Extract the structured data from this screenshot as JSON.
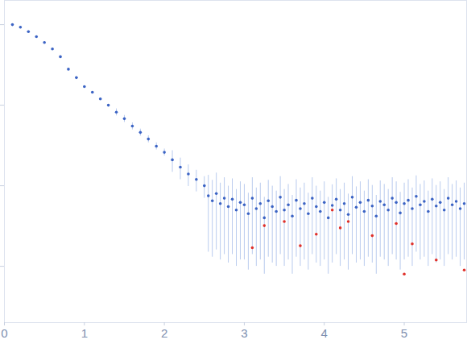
{
  "chart_data": {
    "type": "scatter",
    "log": "y",
    "grid": false,
    "tick_labels": "x",
    "xlim": [
      0,
      5.78
    ],
    "xticks": [
      0,
      1,
      2,
      3,
      4,
      5
    ],
    "ylim": [
      0.0002,
      2
    ],
    "yticks": [
      0.001,
      0.01,
      0.1,
      1
    ],
    "series": [
      {
        "color": "#3b63c4",
        "marker": "circle",
        "x": [
          0.1,
          0.2,
          0.3,
          0.4,
          0.5,
          0.6,
          0.7,
          0.8,
          0.9,
          1.0,
          1.1,
          1.2,
          1.3,
          1.4,
          1.5,
          1.6,
          1.7,
          1.8,
          1.9,
          2.0,
          2.1,
          2.2,
          2.3,
          2.4,
          2.5,
          2.55,
          2.6,
          2.65,
          2.7,
          2.75,
          2.8,
          2.85,
          2.9,
          2.95,
          3.0,
          3.05,
          3.1,
          3.15,
          3.2,
          3.25,
          3.3,
          3.35,
          3.4,
          3.45,
          3.5,
          3.55,
          3.6,
          3.65,
          3.7,
          3.75,
          3.8,
          3.85,
          3.9,
          3.95,
          4.0,
          4.05,
          4.1,
          4.15,
          4.2,
          4.25,
          4.3,
          4.35,
          4.4,
          4.45,
          4.5,
          4.55,
          4.6,
          4.65,
          4.7,
          4.75,
          4.8,
          4.85,
          4.9,
          4.95,
          5.0,
          5.05,
          5.1,
          5.15,
          5.2,
          5.25,
          5.3,
          5.35,
          5.4,
          5.45,
          5.5,
          5.55,
          5.6,
          5.65,
          5.7,
          5.75
        ],
        "values": [
          1.0,
          0.93,
          0.82,
          0.71,
          0.6,
          0.5,
          0.4,
          0.28,
          0.22,
          0.17,
          0.145,
          0.12,
          0.1,
          0.082,
          0.068,
          0.055,
          0.046,
          0.038,
          0.031,
          0.026,
          0.021,
          0.017,
          0.014,
          0.012,
          0.01,
          0.0075,
          0.0065,
          0.008,
          0.006,
          0.007,
          0.0055,
          0.0068,
          0.005,
          0.0062,
          0.0058,
          0.0045,
          0.007,
          0.0052,
          0.006,
          0.004,
          0.0065,
          0.0055,
          0.0048,
          0.0072,
          0.005,
          0.0058,
          0.0042,
          0.0066,
          0.0052,
          0.006,
          0.0045,
          0.007,
          0.0055,
          0.0048,
          0.0062,
          0.004,
          0.0057,
          0.0068,
          0.005,
          0.006,
          0.0044,
          0.0072,
          0.0054,
          0.0062,
          0.0048,
          0.0066,
          0.0056,
          0.0042,
          0.0064,
          0.0058,
          0.005,
          0.007,
          0.0062,
          0.0046,
          0.006,
          0.0066,
          0.0052,
          0.0074,
          0.0058,
          0.0064,
          0.0048,
          0.0068,
          0.0056,
          0.0062,
          0.005,
          0.007,
          0.0058,
          0.0064,
          0.0052,
          0.006
        ],
        "errors": [
          0.02,
          0.019,
          0.016,
          0.014,
          0.012,
          0.01,
          0.008,
          0.0056,
          0.0044,
          0.0034,
          0.003,
          0.0024,
          0.002,
          0.0082,
          0.0068,
          0.0055,
          0.0046,
          0.0038,
          0.0031,
          0.0026,
          0.0063,
          0.0051,
          0.0042,
          0.0036,
          0.003,
          0.006,
          0.0052,
          0.0064,
          0.0048,
          0.0056,
          0.0044,
          0.0054,
          0.004,
          0.005,
          0.0046,
          0.0036,
          0.0056,
          0.0042,
          0.0048,
          0.0032,
          0.0052,
          0.0044,
          0.0038,
          0.0058,
          0.004,
          0.0046,
          0.0034,
          0.0053,
          0.0042,
          0.0048,
          0.0036,
          0.0056,
          0.0044,
          0.0038,
          0.005,
          0.0032,
          0.0046,
          0.0054,
          0.004,
          0.0048,
          0.0035,
          0.0058,
          0.0043,
          0.005,
          0.0038,
          0.0053,
          0.0045,
          0.0034,
          0.0051,
          0.0046,
          0.004,
          0.0056,
          0.005,
          0.0037,
          0.0048,
          0.0053,
          0.0042,
          0.0059,
          0.0046,
          0.0051,
          0.0038,
          0.0054,
          0.0045,
          0.005,
          0.004,
          0.0056,
          0.0046,
          0.0051,
          0.0042,
          0.0048
        ]
      },
      {
        "color": "#e0302a",
        "marker": "circle",
        "x": [
          3.1,
          3.25,
          3.5,
          3.7,
          3.9,
          4.1,
          4.2,
          4.3,
          4.6,
          4.9,
          5.0,
          5.1,
          5.4,
          5.75
        ],
        "values": [
          0.0017,
          0.0032,
          0.0036,
          0.0018,
          0.0025,
          0.005,
          0.003,
          0.0036,
          0.0024,
          0.0034,
          0.0008,
          0.0019,
          0.0012,
          0.0009
        ]
      }
    ]
  }
}
